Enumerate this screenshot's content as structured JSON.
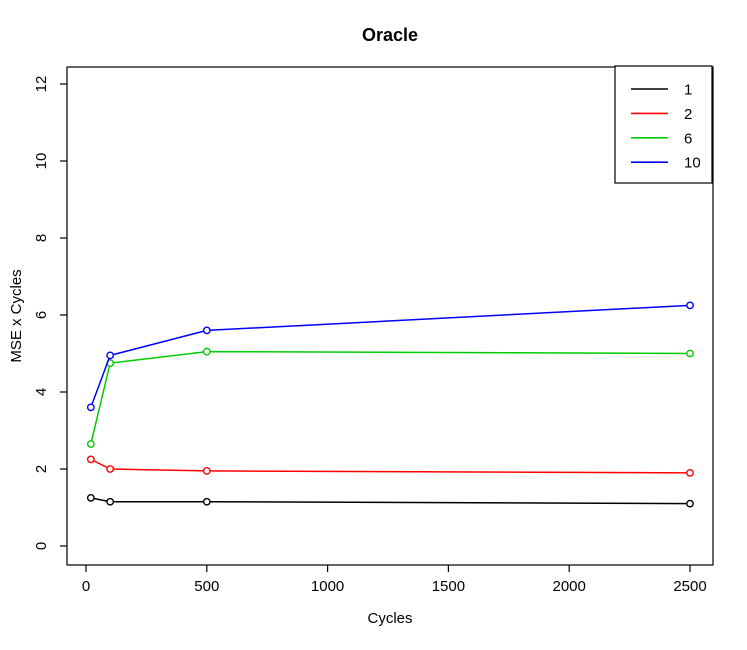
{
  "chart_data": {
    "type": "line",
    "title": "Oracle",
    "xlabel": "Cycles",
    "ylabel": "MSE x Cycles",
    "x": [
      20,
      100,
      500,
      2500
    ],
    "series": [
      {
        "name": "1",
        "color": "#000000",
        "values": [
          1.25,
          1.15,
          1.15,
          1.1
        ]
      },
      {
        "name": "2",
        "color": "#FF0000",
        "values": [
          2.25,
          2.0,
          1.95,
          1.9
        ]
      },
      {
        "name": "6",
        "color": "#00CD00",
        "values": [
          2.65,
          4.75,
          5.05,
          5.0
        ]
      },
      {
        "name": "10",
        "color": "#0000FF",
        "values": [
          3.6,
          4.95,
          5.6,
          6.25
        ]
      }
    ],
    "x_ticks": [
      0,
      500,
      1000,
      1500,
      2000,
      2500
    ],
    "y_ticks": [
      0,
      2,
      4,
      6,
      8,
      10,
      12
    ],
    "xlim": [
      0,
      2500
    ],
    "ylim": [
      0,
      12.4
    ],
    "grid": false,
    "marker": "open-circle",
    "legend_position": "top-right",
    "legend_entries": [
      "1",
      "2",
      "6",
      "10"
    ]
  }
}
